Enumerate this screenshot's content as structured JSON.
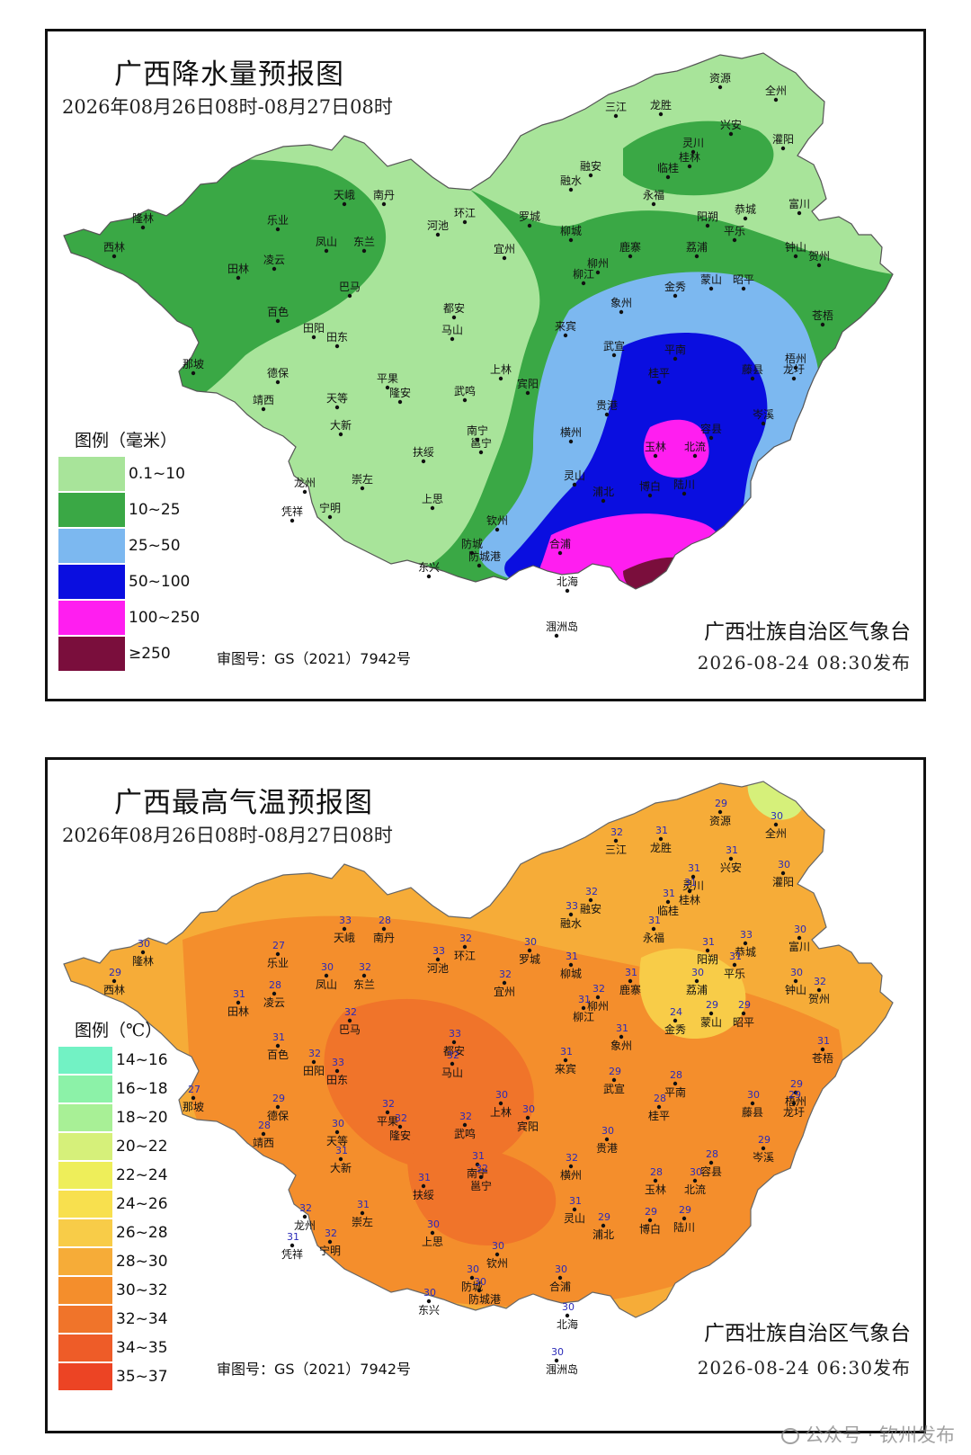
{
  "colors": {
    "rain": [
      "#a8e49a",
      "#3aa845",
      "#7cb8f0",
      "#0a0ee0",
      "#ff1ef0",
      "#7a0e3c"
    ],
    "temp": [
      "#72f2c4",
      "#8cf2a8",
      "#a8f096",
      "#d6f07a",
      "#eeee5a",
      "#f8e04e",
      "#f8cc48",
      "#f6ac38",
      "#f48e2c",
      "#f0742a",
      "#ee5c28",
      "#ec4424"
    ]
  },
  "rain_map": {
    "title": "广西降水量预报图",
    "period": "2026年08月26日08时-08月27日08时",
    "legend_title": "图例（毫米）",
    "legend": [
      {
        "label": "0.1~10",
        "color": "#a8e49a"
      },
      {
        "label": "10~25",
        "color": "#3aa845"
      },
      {
        "label": "25~50",
        "color": "#7cb8f0"
      },
      {
        "label": "50~100",
        "color": "#0a0ee0"
      },
      {
        "label": "100~250",
        "color": "#ff1ef0"
      },
      {
        "label": "≥250",
        "color": "#7a0e3c"
      }
    ],
    "approval_no": "审图号：GS（2021）7942号",
    "issuer": "广西壮族自治区气象台",
    "issued": "2026-08-24  08:30发布",
    "cities": [
      "资源",
      "全州",
      "三江",
      "龙胜",
      "兴安",
      "灌阳",
      "灵川",
      "桂林",
      "临桂",
      "融安",
      "融水",
      "永福",
      "天峨",
      "南丹",
      "环江",
      "罗城",
      "隆林",
      "乐业",
      "凤山",
      "东兰",
      "河池",
      "阳朔",
      "恭城",
      "富川",
      "平乐",
      "钟山",
      "贺州",
      "西林",
      "田林",
      "凌云",
      "巴马",
      "宜州",
      "柳城",
      "鹿寨",
      "荔浦",
      "柳州",
      "柳江",
      "金秀",
      "蒙山",
      "昭平",
      "都安",
      "象州",
      "苍梧",
      "百色",
      "田阳",
      "田东",
      "马山",
      "来宾",
      "武宣",
      "平南",
      "梧州",
      "龙圩",
      "那坡",
      "德保",
      "平果",
      "上林",
      "宾阳",
      "桂平",
      "藤县",
      "靖西",
      "天等",
      "隆安",
      "武鸣",
      "贵港",
      "岑溪",
      "大新",
      "南宁",
      "邕宁",
      "横州",
      "容县",
      "玉林",
      "北流",
      "扶绥",
      "龙州",
      "崇左",
      "灵山",
      "浦北",
      "博白",
      "陆川",
      "凭祥",
      "宁明",
      "上思",
      "钦州",
      "防城",
      "防城港",
      "合浦",
      "东兴",
      "北海",
      "涠洲岛"
    ]
  },
  "temp_map": {
    "title": "广西最高气温预报图",
    "period": "2026年08月26日08时-08月27日08时",
    "legend_title": "图例（℃）",
    "legend": [
      {
        "label": "14~16",
        "color": "#72f2c4"
      },
      {
        "label": "16~18",
        "color": "#8cf2a8"
      },
      {
        "label": "18~20",
        "color": "#a8f096"
      },
      {
        "label": "20~22",
        "color": "#d6f07a"
      },
      {
        "label": "22~24",
        "color": "#eeee5a"
      },
      {
        "label": "24~26",
        "color": "#f8e04e"
      },
      {
        "label": "26~28",
        "color": "#f8cc48"
      },
      {
        "label": "28~30",
        "color": "#f6ac38"
      },
      {
        "label": "30~32",
        "color": "#f48e2c"
      },
      {
        "label": "32~34",
        "color": "#f0742a"
      },
      {
        "label": "34~35",
        "color": "#ee5c28"
      },
      {
        "label": "35~37",
        "color": "#ec4424"
      }
    ],
    "approval_no": "审图号：GS（2021）7942号",
    "issuer": "广西壮族自治区气象台",
    "issued": "2026-08-24  06:30发布",
    "stations": [
      {
        "name": "资源",
        "t": "29"
      },
      {
        "name": "全州",
        "t": "30"
      },
      {
        "name": "三江",
        "t": "32"
      },
      {
        "name": "龙胜",
        "t": "31"
      },
      {
        "name": "兴安",
        "t": "31"
      },
      {
        "name": "灌阳",
        "t": "30"
      },
      {
        "name": "灵川",
        "t": "31"
      },
      {
        "name": "桂林",
        "t": "31"
      },
      {
        "name": "临桂",
        "t": "31"
      },
      {
        "name": "融安",
        "t": "32"
      },
      {
        "name": "融水",
        "t": "33"
      },
      {
        "name": "永福",
        "t": "31"
      },
      {
        "name": "天峨",
        "t": "33"
      },
      {
        "name": "南丹",
        "t": "28"
      },
      {
        "name": "环江",
        "t": "32"
      },
      {
        "name": "罗城",
        "t": "30"
      },
      {
        "name": "隆林",
        "t": "30"
      },
      {
        "name": "乐业",
        "t": "27"
      },
      {
        "name": "凤山",
        "t": "30"
      },
      {
        "name": "东兰",
        "t": "32"
      },
      {
        "name": "河池",
        "t": "33"
      },
      {
        "name": "阳朔",
        "t": "31"
      },
      {
        "name": "恭城",
        "t": "33"
      },
      {
        "name": "富川",
        "t": "30"
      },
      {
        "name": "平乐",
        "t": "31"
      },
      {
        "name": "钟山",
        "t": "30"
      },
      {
        "name": "贺州",
        "t": "32"
      },
      {
        "name": "西林",
        "t": "29"
      },
      {
        "name": "田林",
        "t": "31"
      },
      {
        "name": "凌云",
        "t": "28"
      },
      {
        "name": "巴马",
        "t": "32"
      },
      {
        "name": "宜州",
        "t": "32"
      },
      {
        "name": "柳城",
        "t": "31"
      },
      {
        "name": "鹿寨",
        "t": "31"
      },
      {
        "name": "荔浦",
        "t": "30"
      },
      {
        "name": "柳州",
        "t": "32"
      },
      {
        "name": "柳江",
        "t": "31"
      },
      {
        "name": "金秀",
        "t": "24"
      },
      {
        "name": "蒙山",
        "t": "29"
      },
      {
        "name": "昭平",
        "t": "29"
      },
      {
        "name": "都安",
        "t": "33"
      },
      {
        "name": "象州",
        "t": "31"
      },
      {
        "name": "苍梧",
        "t": "31"
      },
      {
        "name": "百色",
        "t": "31"
      },
      {
        "name": "田阳",
        "t": "32"
      },
      {
        "name": "田东",
        "t": "33"
      },
      {
        "name": "马山",
        "t": "32"
      },
      {
        "name": "来宾",
        "t": "31"
      },
      {
        "name": "武宣",
        "t": "29"
      },
      {
        "name": "平南",
        "t": "28"
      },
      {
        "name": "梧州",
        "t": "29"
      },
      {
        "name": "龙圩",
        "t": "29"
      },
      {
        "name": "那坡",
        "t": "27"
      },
      {
        "name": "德保",
        "t": "29"
      },
      {
        "name": "平果",
        "t": "32"
      },
      {
        "name": "上林",
        "t": "30"
      },
      {
        "name": "宾阳",
        "t": "30"
      },
      {
        "name": "桂平",
        "t": "28"
      },
      {
        "name": "藤县",
        "t": "30"
      },
      {
        "name": "靖西",
        "t": "28"
      },
      {
        "name": "天等",
        "t": "30"
      },
      {
        "name": "隆安",
        "t": "32"
      },
      {
        "name": "武鸣",
        "t": "32"
      },
      {
        "name": "贵港",
        "t": "30"
      },
      {
        "name": "岑溪",
        "t": "29"
      },
      {
        "name": "大新",
        "t": "31"
      },
      {
        "name": "南宁",
        "t": "31"
      },
      {
        "name": "邕宁",
        "t": "32"
      },
      {
        "name": "横州",
        "t": "32"
      },
      {
        "name": "容县",
        "t": "28"
      },
      {
        "name": "玉林",
        "t": "28"
      },
      {
        "name": "北流",
        "t": "30"
      },
      {
        "name": "扶绥",
        "t": "31"
      },
      {
        "name": "龙州",
        "t": "32"
      },
      {
        "name": "崇左",
        "t": "31"
      },
      {
        "name": "灵山",
        "t": "31"
      },
      {
        "name": "浦北",
        "t": "29"
      },
      {
        "name": "博白",
        "t": "29"
      },
      {
        "name": "陆川",
        "t": "29"
      },
      {
        "name": "凭祥",
        "t": "31"
      },
      {
        "name": "宁明",
        "t": "32"
      },
      {
        "name": "上思",
        "t": "30"
      },
      {
        "name": "钦州",
        "t": "30"
      },
      {
        "name": "防城",
        "t": "30"
      },
      {
        "name": "防城港",
        "t": "30"
      },
      {
        "name": "合浦",
        "t": "30"
      },
      {
        "name": "东兴",
        "t": "30"
      },
      {
        "name": "北海",
        "t": "30"
      },
      {
        "name": "涠洲岛",
        "t": "30"
      }
    ]
  },
  "watermark": "公众号 · 钦州发布"
}
